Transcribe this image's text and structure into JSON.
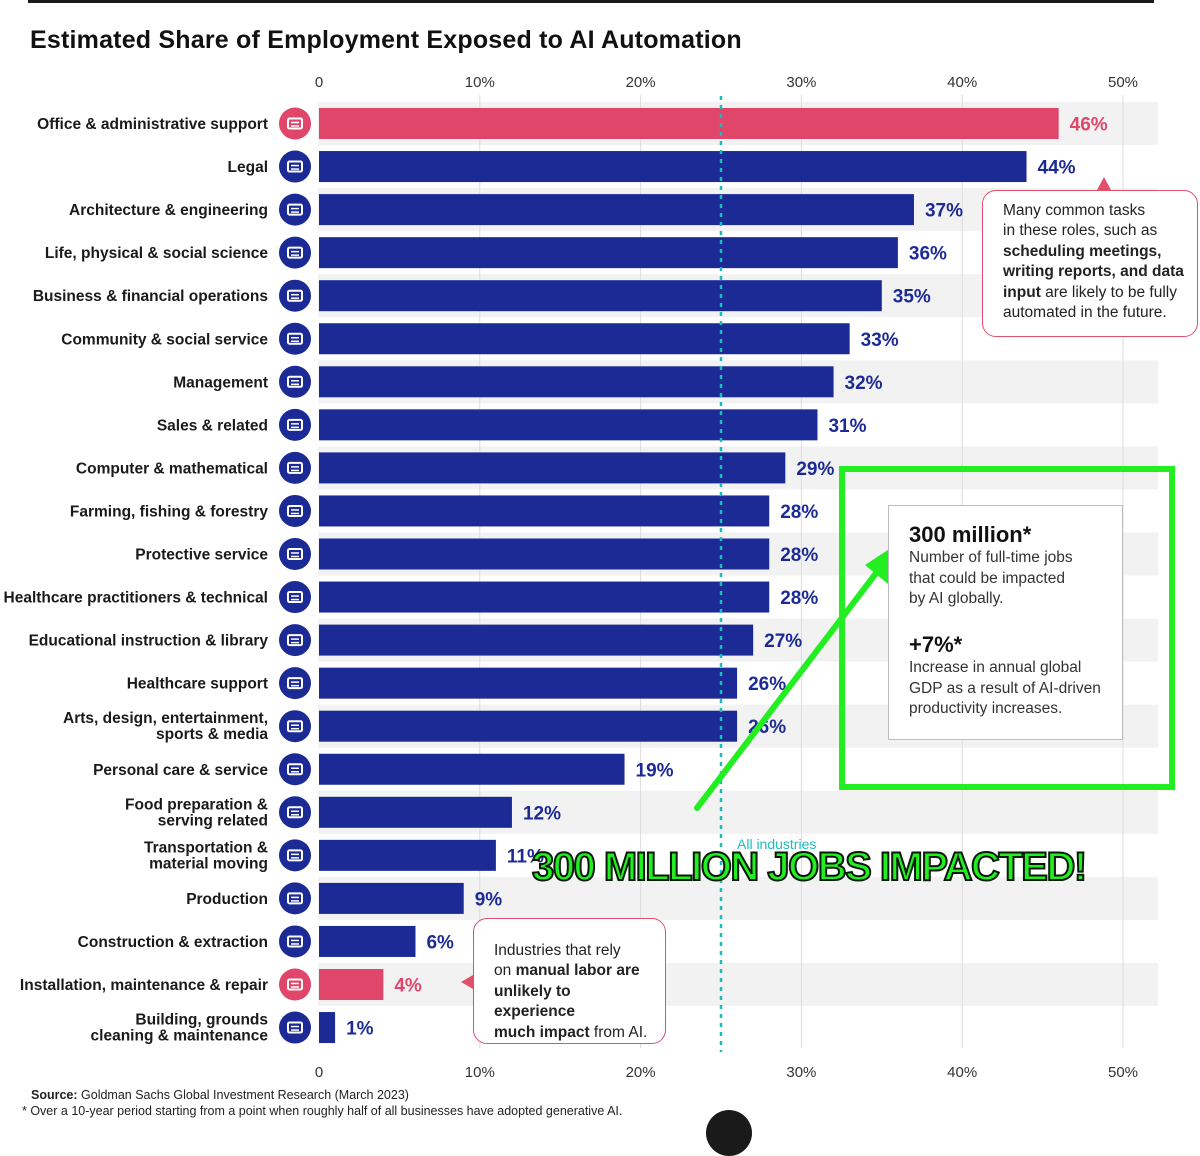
{
  "title": "Estimated Share of Employment Exposed to AI Automation",
  "chart_data": {
    "type": "bar",
    "orientation": "horizontal",
    "title": "Estimated Share of Employment Exposed to AI Automation",
    "xlim": [
      0,
      50
    ],
    "ticks": [
      "0",
      "10%",
      "20%",
      "30%",
      "40%",
      "50%"
    ],
    "reference_line": {
      "label": "All industries",
      "value": 25
    },
    "colors": {
      "default": "#1c2a96",
      "highlight": "#e0456a",
      "reference": "#1cbcbc"
    },
    "categories": [
      {
        "label": [
          "Office & administrative support"
        ],
        "value": 46,
        "display": "46%",
        "highlight": true,
        "icon": "printer-icon"
      },
      {
        "label": [
          "Legal"
        ],
        "value": 44,
        "display": "44%",
        "highlight": false,
        "icon": "gavel-icon"
      },
      {
        "label": [
          "Architecture & engineering"
        ],
        "value": 37,
        "display": "37%",
        "highlight": false,
        "icon": "building-icon"
      },
      {
        "label": [
          "Life, physical & social science"
        ],
        "value": 36,
        "display": "36%",
        "highlight": false,
        "icon": "atom-icon"
      },
      {
        "label": [
          "Business & financial operations"
        ],
        "value": 35,
        "display": "35%",
        "highlight": false,
        "icon": "handshake-icon"
      },
      {
        "label": [
          "Community & social service"
        ],
        "value": 33,
        "display": "33%",
        "highlight": false,
        "icon": "person-icon"
      },
      {
        "label": [
          "Management"
        ],
        "value": 32,
        "display": "32%",
        "highlight": false,
        "icon": "folder-icon"
      },
      {
        "label": [
          "Sales & related"
        ],
        "value": 31,
        "display": "31%",
        "highlight": false,
        "icon": "bar-chart-icon"
      },
      {
        "label": [
          "Computer & mathematical"
        ],
        "value": 29,
        "display": "29%",
        "highlight": false,
        "icon": "gear-icon"
      },
      {
        "label": [
          "Farming, fishing & forestry"
        ],
        "value": 28,
        "display": "28%",
        "highlight": false,
        "icon": "tree-icon"
      },
      {
        "label": [
          "Protective service"
        ],
        "value": 28,
        "display": "28%",
        "highlight": false,
        "icon": "lock-icon"
      },
      {
        "label": [
          "Healthcare practitioners & technical"
        ],
        "value": 28,
        "display": "28%",
        "highlight": false,
        "icon": "stethoscope-icon"
      },
      {
        "label": [
          "Educational instruction & library"
        ],
        "value": 27,
        "display": "27%",
        "highlight": false,
        "icon": "graduation-cap-icon"
      },
      {
        "label": [
          "Healthcare support"
        ],
        "value": 26,
        "display": "26%",
        "highlight": false,
        "icon": "heartbeat-icon"
      },
      {
        "label": [
          "Arts, design, entertainment,",
          "sports & media"
        ],
        "value": 26,
        "display": "26%",
        "highlight": false,
        "icon": "gamepad-icon"
      },
      {
        "label": [
          "Personal care & service"
        ],
        "value": 19,
        "display": "19%",
        "highlight": false,
        "icon": "cart-icon"
      },
      {
        "label": [
          "Food preparation &",
          "serving related"
        ],
        "value": 12,
        "display": "12%",
        "highlight": false,
        "icon": "cup-icon"
      },
      {
        "label": [
          "Transportation &",
          "material moving"
        ],
        "value": 11,
        "display": "11%",
        "highlight": false,
        "icon": "car-icon"
      },
      {
        "label": [
          "Production"
        ],
        "value": 9,
        "display": "9%",
        "highlight": false,
        "icon": "factory-icon"
      },
      {
        "label": [
          "Construction & extraction"
        ],
        "value": 6,
        "display": "6%",
        "highlight": false,
        "icon": "oil-pump-icon"
      },
      {
        "label": [
          "Installation, maintenance & repair"
        ],
        "value": 4,
        "display": "4%",
        "highlight": true,
        "icon": "robot-arm-icon"
      },
      {
        "label": [
          "Building, grounds",
          "cleaning & maintenance"
        ],
        "value": 1,
        "display": "1%",
        "highlight": false,
        "icon": "city-icon"
      }
    ]
  },
  "callout_top": {
    "line1": "Many common tasks",
    "line2": "in these roles, such as",
    "bold1": "scheduling meetings,",
    "bold2": "writing reports, and data",
    "bold3": "input",
    "tail1": " are likely to be fully",
    "line6": "automated in the future."
  },
  "callout_bottom": {
    "line1": "Industries that rely",
    "pre2": "on ",
    "bold2": "manual labor are",
    "bold3": "unlikely to experience",
    "bold4": "much impact",
    "tail4": " from AI."
  },
  "stats": {
    "jobs_big": "300 million*",
    "jobs_d1": "Number of full-time jobs",
    "jobs_d2": "that could be impacted",
    "jobs_d3": "by AI globally.",
    "gdp_big": "+7%*",
    "gdp_d1": "Increase in annual global",
    "gdp_d2": "GDP as a result of AI-driven",
    "gdp_d3": "productivity increases."
  },
  "reference_label": "All industries",
  "headline": "300 MILLION JOBS IMPACTED!",
  "source_label": "Source:",
  "source_text": " Goldman Sachs Global Investment Research (March 2023)",
  "footnote": "* Over a 10-year period starting from a point when roughly half of all businesses have adopted generative AI."
}
